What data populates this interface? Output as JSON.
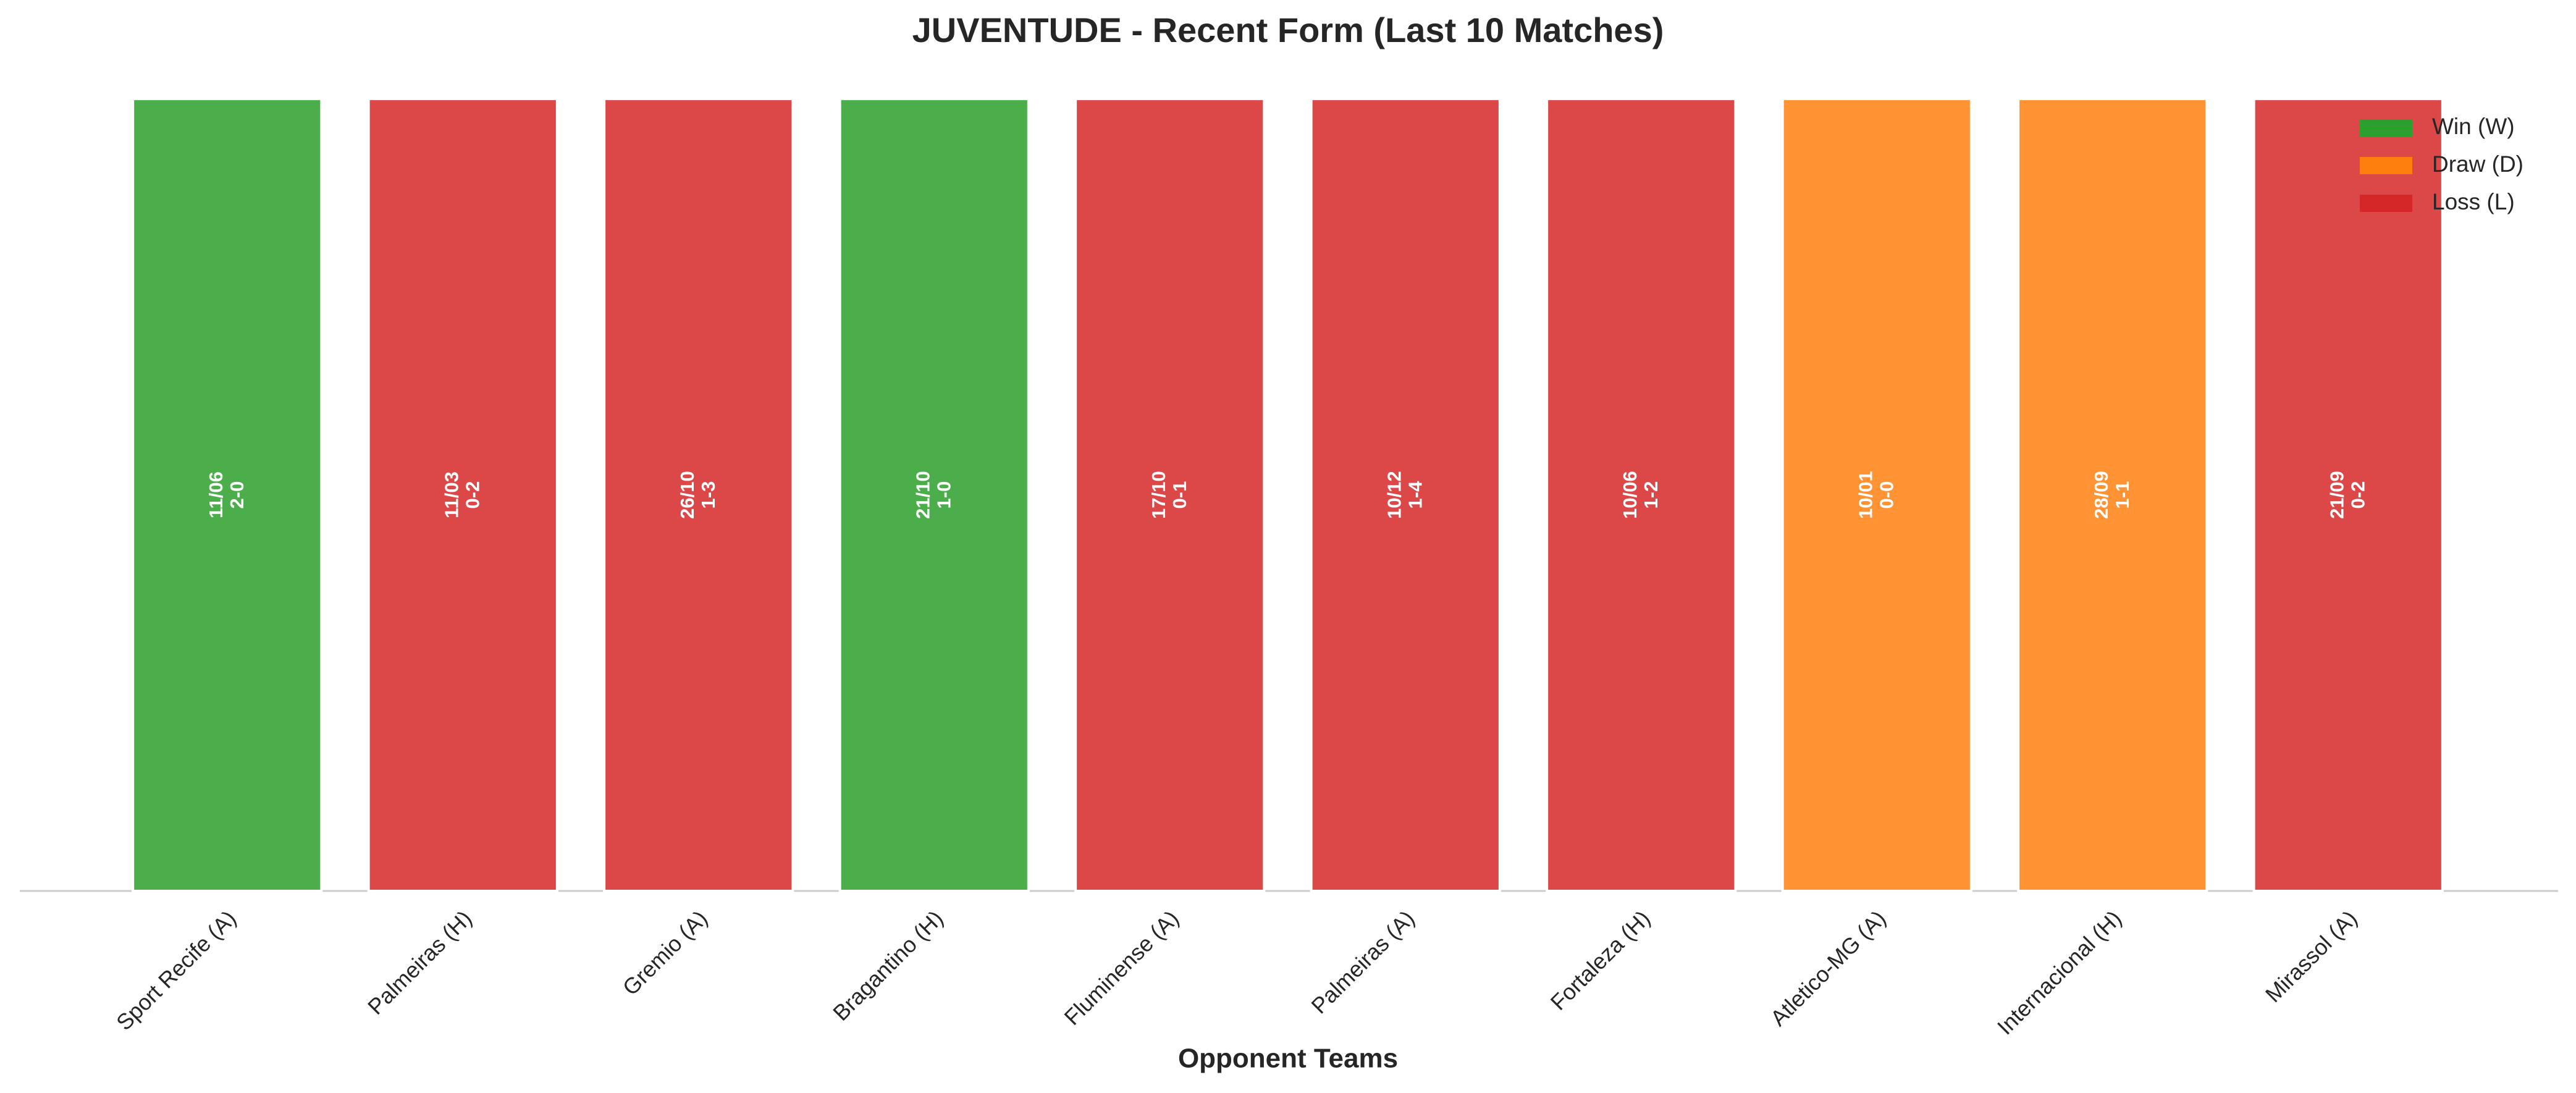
{
  "chart_data": {
    "type": "bar",
    "title": "JUVENTUDE - Recent Form (Last 10 Matches)",
    "x_label": "Opponent Teams",
    "categories": [
      "Sport Recife (A)",
      "Palmeiras (H)",
      "Gremio (A)",
      "Bragantino (H)",
      "Fluminense (A)",
      "Palmeiras (A)",
      "Fortaleza (H)",
      "Atletico-MG (A)",
      "Internacional (H)",
      "Mirassol (A)"
    ],
    "values": [
      1,
      1,
      1,
      1,
      1,
      1,
      1,
      1,
      1,
      1
    ],
    "dates": [
      "11/06",
      "11/03",
      "26/10",
      "21/10",
      "17/10",
      "10/12",
      "10/06",
      "10/01",
      "28/09",
      "21/09"
    ],
    "scores": [
      "2-0",
      "0-2",
      "1-3",
      "1-0",
      "0-1",
      "1-4",
      "1-2",
      "0-0",
      "1-1",
      "0-2"
    ],
    "colors": [
      "#2ca02c",
      "#d62728",
      "#d62728",
      "#2ca02c",
      "#d62728",
      "#d62728",
      "#d62728",
      "#ff7f0e",
      "#ff7f0e",
      "#d62728"
    ],
    "legend": [
      {
        "name": "Win (W)",
        "color": "#2ca02c"
      },
      {
        "name": "Draw (D)",
        "color": "#ff7f0e"
      },
      {
        "name": "Loss (L)",
        "color": "#d62728"
      }
    ],
    "legend_position": "upper right",
    "ylim": [
      0,
      1.05
    ]
  }
}
